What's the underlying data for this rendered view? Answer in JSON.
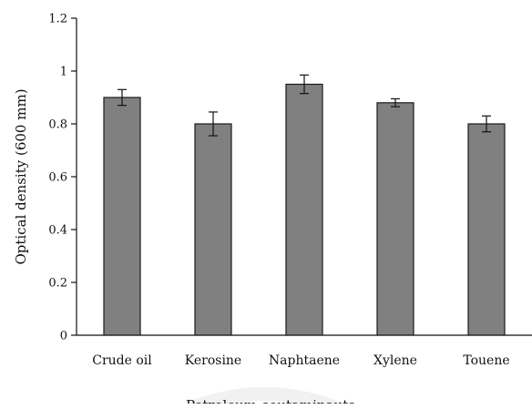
{
  "chart_data": {
    "type": "bar",
    "categories": [
      "Crude oil",
      "Kerosine",
      "Naphtaene",
      "Xylene",
      "Touene"
    ],
    "values": [
      0.9,
      0.8,
      0.95,
      0.88,
      0.8
    ],
    "errors": [
      0.03,
      0.045,
      0.035,
      0.015,
      0.03
    ],
    "xlabel": "Petroleum coutaminauts",
    "ylabel": "Optical density (600 mm)",
    "ylim": [
      0,
      1.2
    ],
    "yticks": [
      0,
      0.2,
      0.4,
      0.6,
      0.8,
      1,
      1.2
    ],
    "ytick_labels": [
      "0",
      "0.2",
      "0.4",
      "0.6",
      "0.8",
      "1",
      "1.2"
    ],
    "grid": false,
    "bar_color": "#808080"
  }
}
